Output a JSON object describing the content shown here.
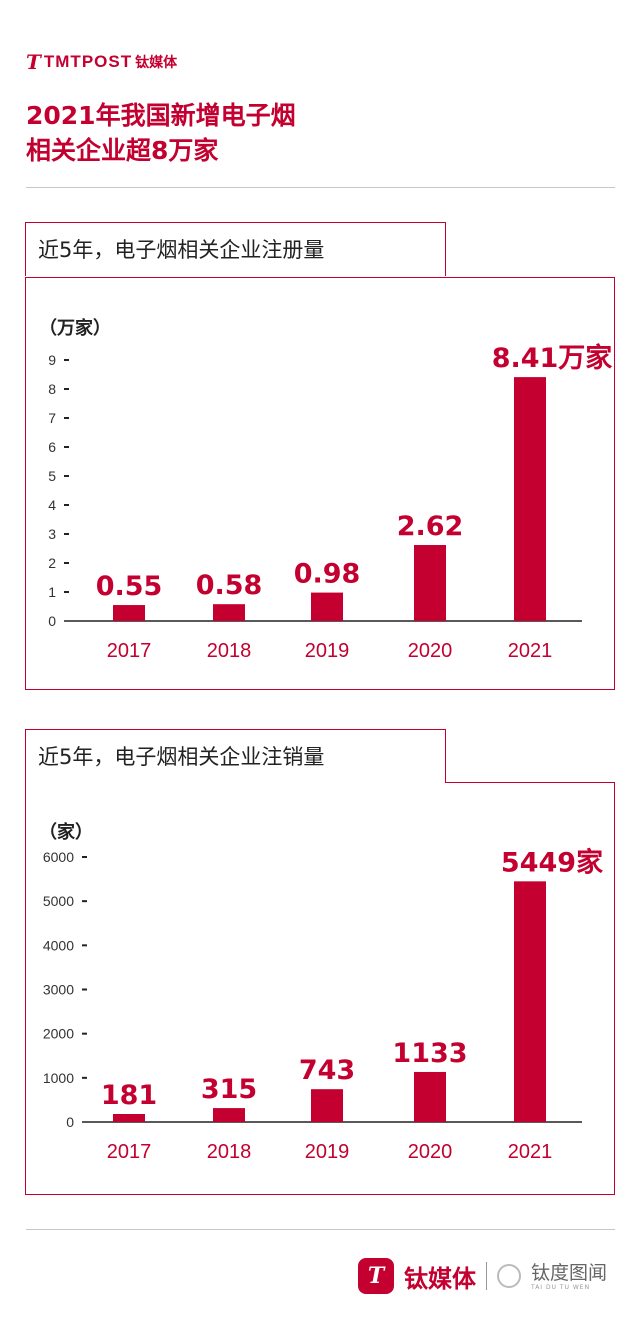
{
  "brand": {
    "logo_word": "TMTPOST",
    "logo_cn": "钛媒体",
    "footer_cn": "钛媒体",
    "footer_partner_cn": "钛度图闻",
    "footer_partner_en": "TAI DU TU WEN"
  },
  "title": {
    "line1": "2021年我国新增电子烟",
    "line2": "相关企业超8万家"
  },
  "colors": {
    "accent": "#c3002f",
    "bar": "#c3002f",
    "rule": "#c7c7c7"
  },
  "chart_data": [
    {
      "type": "bar",
      "title": "近5年，电子烟相关企业注册量",
      "unit_label": "（万家）",
      "categories": [
        "2017",
        "2018",
        "2019",
        "2020",
        "2021"
      ],
      "values": [
        0.55,
        0.58,
        0.98,
        2.62,
        8.41
      ],
      "value_labels": [
        "0.55",
        "0.58",
        "0.98",
        "2.62",
        "8.41万家"
      ],
      "yticks": [
        "0",
        "1",
        "2",
        "3",
        "4",
        "5",
        "6",
        "7",
        "8",
        "9"
      ],
      "ylim": [
        0,
        9
      ],
      "grid": false,
      "legend": "none"
    },
    {
      "type": "bar",
      "title": "近5年，电子烟相关企业注销量",
      "unit_label": "（家）",
      "categories": [
        "2017",
        "2018",
        "2019",
        "2020",
        "2021"
      ],
      "values": [
        181,
        315,
        743,
        1133,
        5449
      ],
      "value_labels": [
        "181",
        "315",
        "743",
        "1133",
        "5449家"
      ],
      "yticks": [
        "0",
        "1000",
        "2000",
        "3000",
        "4000",
        "5000",
        "6000"
      ],
      "ylim": [
        0,
        6000
      ],
      "grid": false,
      "legend": "none"
    }
  ]
}
